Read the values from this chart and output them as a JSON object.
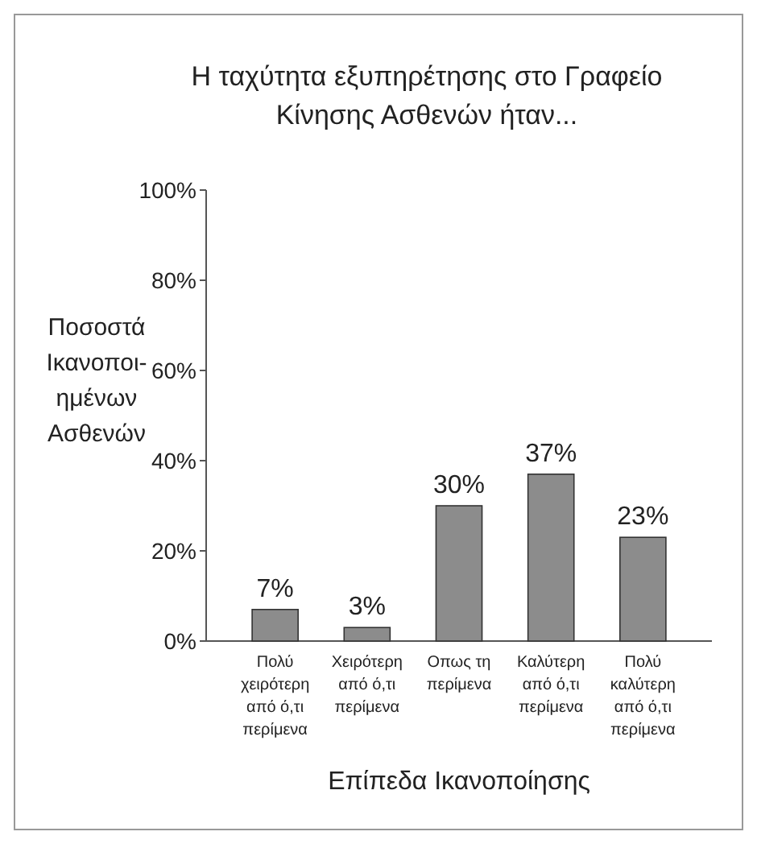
{
  "chart_data": {
    "type": "bar",
    "title": "Η ταχύτητα εξυπηρέτησης στο Γραφείο Κίνησης Ασθενών ήταν...",
    "xlabel": "Επίπεδα Ικανοποίησης",
    "ylabel": "Ποσοστά Ικανοποι-ημένων Ασθενών",
    "categories": [
      "Πολύ χειρότερη από ό,τι περίμενα",
      "Χειρότερη από ό,τι περίμενα",
      "Οπως τη περίμενα",
      "Καλύτερη από ό,τι περίμενα",
      "Πολύ καλύτερη από ό,τι περίμενα"
    ],
    "values": [
      7,
      3,
      30,
      37,
      23
    ],
    "value_labels": [
      "7%",
      "3%",
      "30%",
      "37%",
      "23%"
    ],
    "color": "#8c8c8c",
    "ylim": [
      0,
      100
    ],
    "yticks": [
      {
        "value": 0,
        "label": "0%"
      },
      {
        "value": 20,
        "label": "20%"
      },
      {
        "value": 40,
        "label": "40%"
      },
      {
        "value": 60,
        "label": "60%"
      },
      {
        "value": 80,
        "label": "80%"
      },
      {
        "value": 100,
        "label": "100%"
      }
    ],
    "grid": false
  }
}
